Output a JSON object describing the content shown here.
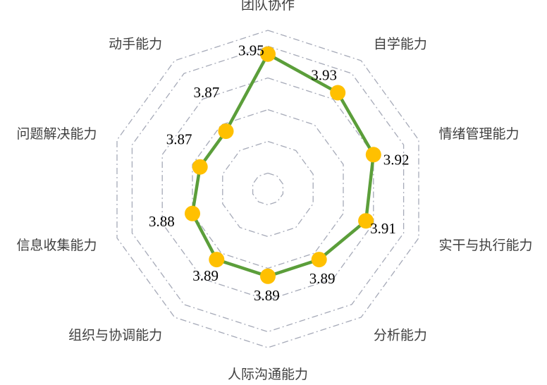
{
  "chart_data": {
    "type": "radar",
    "title": "",
    "categories": [
      "团队协作",
      "自学能力",
      "情绪管理能力",
      "实干与执行能力",
      "分析能力",
      "人际沟通能力",
      "组织与协调能力",
      "信息收集能力",
      "问题解决能力",
      "动手能力"
    ],
    "series": [
      {
        "values": [
          3.95,
          3.93,
          3.92,
          3.91,
          3.89,
          3.89,
          3.89,
          3.88,
          3.87,
          3.87
        ],
        "line_color": "#5B9E3A",
        "marker_color": "#FFC000"
      }
    ],
    "value_labels": [
      "3.95",
      "3.93",
      "3.92",
      "3.91",
      "3.89",
      "3.89",
      "3.89",
      "3.88",
      "3.87",
      "3.87"
    ],
    "r_range": [
      3.78,
      3.98
    ],
    "grid_levels": [
      3.78,
      3.8,
      3.82,
      3.84,
      3.86,
      3.88,
      3.9,
      3.92,
      3.94,
      3.96,
      3.98
    ],
    "grid": true,
    "grid_style": "dash-dot",
    "grid_color": "#A6AAB8",
    "legend": "none"
  }
}
